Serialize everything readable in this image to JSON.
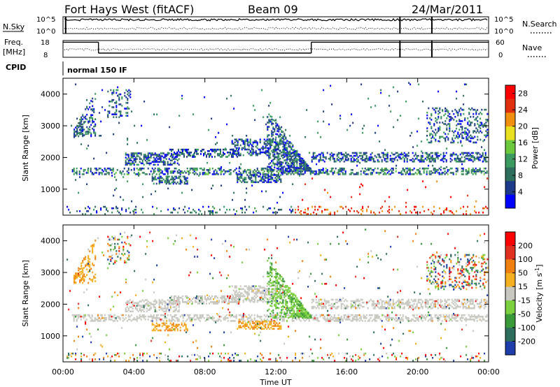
{
  "figure": {
    "station_title": "Fort Hays West (fitACF)",
    "beam_label": "Beam 09",
    "date_label": "24/Mar/2011"
  },
  "chart_data": [
    {
      "type": "line",
      "panel": "noise",
      "left_label": "N.Sky",
      "right_label": "N.Search",
      "left_ticks": [
        "10^5",
        "10^0"
      ],
      "right_ticks": [
        "10^5",
        "10^0"
      ],
      "series": [
        {
          "name": "N.Sky",
          "style": "solid",
          "level_fraction": 0.82
        },
        {
          "name": "N.Search",
          "style": "dotted",
          "level_fraction": 0.3
        }
      ],
      "dropouts_hour": [
        0.15,
        19.0,
        20.8
      ]
    },
    {
      "type": "line",
      "panel": "frequency",
      "left_label": "Freq.",
      "left_unit": "[MHz]",
      "right_label": "Nave",
      "left_ticks": [
        "18",
        "8"
      ],
      "right_ticks": [
        "60",
        "0"
      ],
      "freq_steps": [
        {
          "from_hour": 0.0,
          "to_hour": 2.0,
          "mhz": 17
        },
        {
          "from_hour": 2.0,
          "to_hour": 14.0,
          "mhz": 10.5
        },
        {
          "from_hour": 14.0,
          "to_hour": 24.0,
          "mhz": 17
        }
      ],
      "nave_level": 28
    },
    {
      "type": "text",
      "panel": "cpid",
      "label": "CPID",
      "value": "normal 150 IF"
    },
    {
      "type": "heatmap",
      "panel": "power",
      "ylabel": "Slant Range [km]",
      "ylim": [
        180,
        4500
      ],
      "yticks": [
        "1000",
        "2000",
        "3000",
        "4000"
      ],
      "colorbar_label": "Power [dB]",
      "colorbar_ticks": [
        "4",
        "8",
        "12",
        "16",
        "20",
        "24",
        "28"
      ],
      "colorbar_range": [
        0,
        30
      ],
      "colors": [
        "#0000ff",
        "#1e3a8a",
        "#2e6e5c",
        "#3a9a60",
        "#6cc83c",
        "#e8e020",
        "#f09010",
        "#e03010",
        "#ff0000"
      ]
    },
    {
      "type": "heatmap",
      "panel": "velocity",
      "ylabel": "Slant Range [km]",
      "ylim": [
        180,
        4500
      ],
      "yticks": [
        "1000",
        "2000",
        "3000",
        "4000"
      ],
      "xlabel": "Time UT",
      "xticks": [
        "00:00",
        "04:00",
        "08:00",
        "12:00",
        "16:00",
        "20:00",
        "00:00"
      ],
      "xlim_hours": [
        0,
        24
      ],
      "colorbar_label": "Velocity [m s",
      "colorbar_label_sup": "-1",
      "colorbar_ticks": [
        "200",
        "100",
        "50",
        "15",
        "-15",
        "-50",
        "-100",
        "-200"
      ],
      "colors": [
        "#1e3caa",
        "#2e6e5c",
        "#3a9a3a",
        "#7cd040",
        "#c8c8c0",
        "#f4b020",
        "#f08010",
        "#e03020",
        "#ff0000"
      ],
      "ground_scatter_color": "#c8c8c0"
    }
  ]
}
